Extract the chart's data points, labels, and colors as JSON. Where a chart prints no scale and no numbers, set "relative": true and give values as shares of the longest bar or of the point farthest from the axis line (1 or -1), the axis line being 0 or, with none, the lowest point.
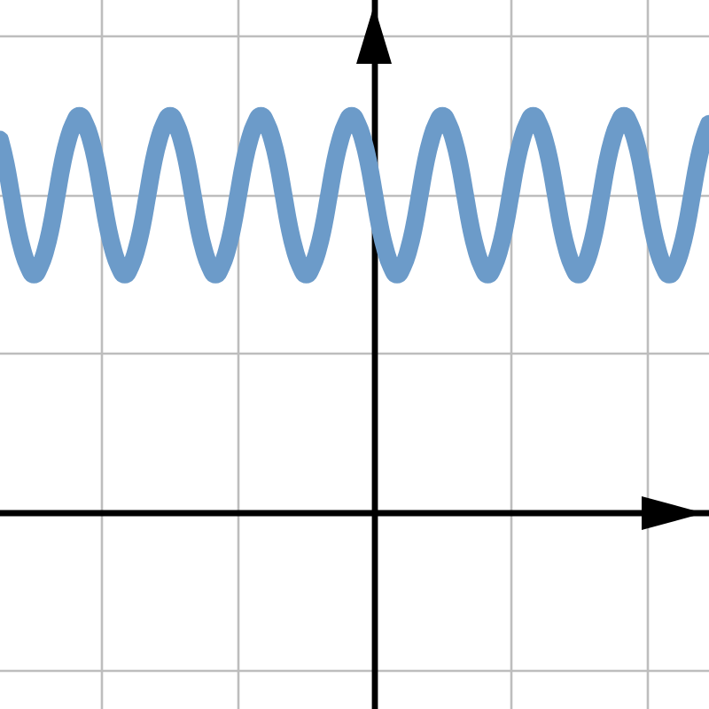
{
  "chart_data": {
    "type": "line",
    "relative": true,
    "categories": [
      null,
      null,
      null,
      null,
      null,
      null,
      null,
      null,
      null,
      null,
      null,
      null,
      null,
      null,
      null,
      null,
      null,
      null,
      null,
      null,
      null,
      null,
      null,
      null,
      null,
      null,
      null,
      null,
      null,
      null,
      null,
      null,
      null,
      null,
      null,
      null,
      null,
      null,
      null,
      null,
      null,
      null,
      null,
      null,
      null,
      null,
      null,
      null,
      null,
      null,
      null,
      null,
      null,
      null,
      null,
      null,
      null,
      null,
      null,
      null,
      null,
      null,
      null,
      null,
      null,
      null,
      null,
      null,
      null,
      null,
      null,
      null,
      null,
      null,
      null,
      null,
      null,
      null,
      null,
      null,
      null,
      null,
      null,
      null,
      null,
      null,
      null,
      null,
      null,
      null,
      null,
      null,
      null,
      null,
      null,
      null,
      null,
      null,
      null,
      null,
      null,
      null,
      null,
      null,
      null,
      null,
      null,
      null,
      null,
      null,
      null,
      null,
      null,
      null,
      null,
      null,
      null,
      null,
      null,
      null,
      null,
      null,
      null,
      null,
      null,
      null
    ],
    "values": [
      0.94,
      0.88,
      0.8,
      0.72,
      0.66,
      0.62,
      0.6,
      0.62,
      0.66,
      0.72,
      0.8,
      0.88,
      0.94,
      0.98,
      1.0,
      0.98,
      0.94,
      0.88,
      0.8,
      0.72,
      0.66,
      0.62,
      0.6,
      0.62,
      0.66,
      0.72,
      0.8,
      0.88,
      0.94,
      0.98,
      1.0,
      0.98,
      0.94,
      0.88,
      0.8,
      0.72,
      0.66,
      0.62,
      0.6,
      0.62,
      0.66,
      0.72,
      0.8,
      0.88,
      0.94,
      0.98,
      1.0,
      0.98,
      0.94,
      0.88,
      0.8,
      0.72,
      0.66,
      0.62,
      0.6,
      0.62,
      0.66,
      0.72,
      0.8,
      0.88,
      0.94,
      0.98,
      1.0,
      0.98,
      0.94,
      0.88,
      0.8,
      0.72,
      0.66,
      0.62,
      0.6,
      0.62,
      0.66,
      0.72,
      0.8,
      0.88,
      0.94,
      0.98,
      1.0,
      0.98,
      0.94,
      0.88,
      0.8,
      0.72,
      0.66,
      0.62,
      0.6,
      0.62,
      0.66,
      0.72,
      0.8,
      0.88,
      0.94,
      0.98,
      1.0,
      0.98,
      0.94,
      0.88,
      0.8,
      0.72,
      0.66,
      0.62,
      0.6,
      0.62,
      0.66,
      0.72,
      0.8,
      0.88,
      0.94,
      0.98,
      1.0,
      0.98,
      0.94,
      0.88,
      0.8,
      0.72,
      0.66,
      0.62,
      0.6,
      0.62,
      0.66,
      0.72,
      0.8,
      0.88,
      0.94,
      0.98
    ],
    "color": "#6c9bc9",
    "grid": true,
    "line_style": "solid",
    "tick_labels": false
  }
}
